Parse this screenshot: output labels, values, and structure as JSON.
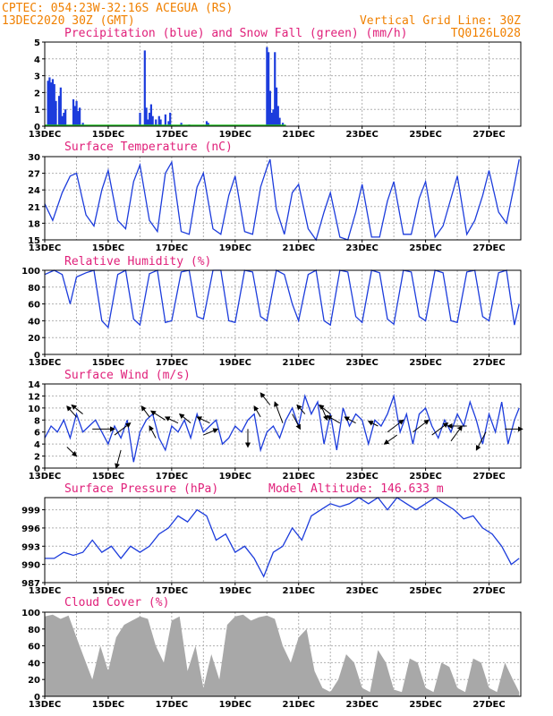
{
  "header": {
    "station": "CPTEC:  054:23W-32:16S  ACEGUA (RS)",
    "datetime": "13DEC2020 30Z (GMT)",
    "grid_note": "Vertical Grid Line: 30Z",
    "code": "TQ0126L028"
  },
  "colors": {
    "line": "#1c3cdc",
    "precip": "#1c3cdc",
    "snow": "#20c020",
    "cloud": "#a8a8a8",
    "title": "#e0207a",
    "header": "#f08000",
    "arrow": "#000000"
  },
  "x_ticks": [
    "13DEC",
    "15DEC",
    "17DEC",
    "19DEC",
    "21DEC",
    "23DEC",
    "25DEC",
    "27DEC"
  ],
  "x_start_label": "13DEC",
  "days_shown": 15,
  "panels": {
    "precip": {
      "title": "Precipitation (blue) and Snow Fall (green) (mm/h)",
      "ylim": [
        0,
        5
      ],
      "yticks": [
        "0",
        "1",
        "2",
        "3",
        "4",
        "5"
      ]
    },
    "temp": {
      "title": "Surface Temperature (nC)",
      "ylim": [
        15,
        30
      ],
      "yticks": [
        "15",
        "18",
        "21",
        "24",
        "27",
        "30"
      ]
    },
    "rh": {
      "title": "Relative Humidity (%)",
      "ylim": [
        0,
        100
      ],
      "yticks": [
        "0",
        "20",
        "40",
        "60",
        "80",
        "100"
      ]
    },
    "wind": {
      "title": "Surface Wind (m/s)",
      "ylim": [
        0,
        14
      ],
      "yticks": [
        "0",
        "2",
        "4",
        "6",
        "8",
        "10",
        "12",
        "14"
      ]
    },
    "pressure": {
      "title": "Surface Pressure (hPa)",
      "altitude": "Model Altitude: 146.633 m",
      "ylim": [
        987,
        1001
      ],
      "yticks": [
        "987",
        "990",
        "993",
        "996",
        "999"
      ]
    },
    "cloud": {
      "title": "Cloud Cover (%)",
      "ylim": [
        0,
        100
      ],
      "yticks": [
        "0",
        "20",
        "40",
        "60",
        "80",
        "100"
      ]
    }
  },
  "chart_data": [
    {
      "type": "bar",
      "name_ref": "precip",
      "x": [
        0.1,
        0.15,
        0.2,
        0.25,
        0.3,
        0.35,
        0.45,
        0.5,
        0.55,
        0.6,
        0.65,
        0.9,
        0.95,
        1.0,
        1.05,
        1.1,
        1.2,
        3.0,
        3.15,
        3.2,
        3.25,
        3.3,
        3.35,
        3.4,
        3.5,
        3.6,
        3.65,
        3.8,
        3.9,
        3.95,
        4.3,
        4.55,
        5.1,
        5.15,
        7.0,
        7.05,
        7.1,
        7.15,
        7.2,
        7.25,
        7.3,
        7.35,
        7.4,
        7.5
      ],
      "values": [
        2.7,
        2.9,
        2.6,
        2.8,
        2.5,
        1.5,
        1.8,
        2.3,
        0.6,
        0.8,
        1.0,
        1.6,
        1.2,
        1.5,
        0.9,
        1.1,
        0.2,
        0.8,
        4.5,
        1.1,
        0.4,
        0.8,
        1.3,
        0.6,
        0.4,
        0.6,
        0.4,
        0.7,
        0.3,
        0.8,
        0.2,
        0.1,
        0.3,
        0.2,
        4.7,
        4.4,
        2.1,
        0.8,
        1.0,
        4.4,
        2.3,
        1.2,
        0.5,
        0.2
      ]
    },
    {
      "type": "line",
      "name_ref": "temp",
      "x": [
        0,
        0.25,
        0.55,
        0.8,
        1.0,
        1.3,
        1.55,
        1.8,
        2.0,
        2.3,
        2.55,
        2.8,
        3.0,
        3.3,
        3.55,
        3.8,
        4.0,
        4.3,
        4.55,
        4.8,
        5.0,
        5.3,
        5.55,
        5.8,
        6.0,
        6.3,
        6.55,
        6.8,
        7.0,
        7.1,
        7.3,
        7.55,
        7.8,
        8.0,
        8.3,
        8.55,
        8.8,
        9.0,
        9.3,
        9.55,
        9.8,
        10.0,
        10.3,
        10.55,
        10.8,
        11.0,
        11.3,
        11.55,
        11.8,
        12.0,
        12.3,
        12.55,
        12.8,
        13.0,
        13.3,
        13.55,
        13.8,
        14.0,
        14.3,
        14.55,
        14.8,
        14.95
      ],
      "values": [
        21.5,
        18.5,
        23.5,
        26.5,
        27,
        19.5,
        17.5,
        24,
        27.5,
        18.5,
        17,
        25.5,
        28.5,
        18.5,
        16.5,
        27,
        29,
        16.5,
        16,
        24.5,
        27,
        17,
        16,
        23,
        26.5,
        16.5,
        16,
        24.5,
        28,
        29.5,
        20.5,
        16,
        23.5,
        25,
        17,
        15,
        20,
        23.5,
        15.5,
        15,
        20,
        25,
        15.5,
        15.5,
        22,
        25.5,
        16,
        16,
        22.5,
        25.5,
        15.5,
        17.5,
        22.5,
        26.5,
        16,
        18.5,
        23,
        27.5,
        20,
        18,
        25,
        29.5
      ]
    },
    {
      "type": "line",
      "name_ref": "rh",
      "x": [
        0,
        0.3,
        0.55,
        0.8,
        1.0,
        1.3,
        1.55,
        1.8,
        2.0,
        2.3,
        2.55,
        2.8,
        3.0,
        3.3,
        3.55,
        3.8,
        4.0,
        4.3,
        4.55,
        4.8,
        5.0,
        5.3,
        5.55,
        5.8,
        6.0,
        6.3,
        6.55,
        6.8,
        7.0,
        7.3,
        7.55,
        7.8,
        8.0,
        8.3,
        8.55,
        8.8,
        9.0,
        9.3,
        9.55,
        9.8,
        10.0,
        10.3,
        10.55,
        10.8,
        11.0,
        11.3,
        11.55,
        11.8,
        12.0,
        12.3,
        12.55,
        12.8,
        13.0,
        13.3,
        13.55,
        13.8,
        14.0,
        14.3,
        14.55,
        14.8,
        14.95
      ],
      "values": [
        95,
        100,
        95,
        60,
        92,
        97,
        100,
        40,
        32,
        95,
        100,
        42,
        35,
        96,
        100,
        38,
        40,
        98,
        100,
        45,
        42,
        100,
        100,
        40,
        38,
        100,
        98,
        45,
        40,
        100,
        95,
        60,
        40,
        95,
        100,
        40,
        35,
        100,
        98,
        45,
        38,
        100,
        97,
        42,
        36,
        100,
        98,
        45,
        40,
        100,
        97,
        40,
        38,
        98,
        100,
        45,
        40,
        97,
        100,
        35,
        60
      ]
    },
    {
      "type": "line",
      "name_ref": "wind",
      "x": [
        0,
        0.2,
        0.4,
        0.6,
        0.8,
        1.0,
        1.2,
        1.4,
        1.6,
        1.8,
        2.0,
        2.2,
        2.4,
        2.6,
        2.8,
        3.0,
        3.2,
        3.4,
        3.6,
        3.8,
        4.0,
        4.2,
        4.4,
        4.6,
        4.8,
        5.0,
        5.2,
        5.4,
        5.6,
        5.8,
        6.0,
        6.2,
        6.4,
        6.6,
        6.8,
        7.0,
        7.2,
        7.4,
        7.6,
        7.8,
        8.0,
        8.2,
        8.4,
        8.6,
        8.8,
        9.0,
        9.2,
        9.4,
        9.6,
        9.8,
        10.0,
        10.2,
        10.4,
        10.6,
        10.8,
        11.0,
        11.2,
        11.4,
        11.6,
        11.8,
        12.0,
        12.2,
        12.4,
        12.6,
        12.8,
        13.0,
        13.2,
        13.4,
        13.6,
        13.8,
        14.0,
        14.2,
        14.4,
        14.6,
        14.8,
        14.95
      ],
      "values": [
        5,
        7,
        6,
        8,
        5,
        9,
        6,
        7,
        8,
        6,
        4,
        7,
        5,
        8,
        1,
        6,
        8,
        9,
        5,
        3,
        7,
        6,
        8,
        5,
        9,
        6,
        7,
        8,
        4,
        5,
        7,
        6,
        8,
        9,
        3,
        6,
        7,
        5,
        8,
        10,
        7,
        12,
        9,
        11,
        4,
        9,
        3,
        10,
        7,
        9,
        8,
        4,
        8,
        7,
        9,
        12,
        6,
        9,
        4,
        9,
        10,
        7,
        5,
        8,
        6,
        9,
        7,
        11,
        8,
        4,
        9,
        6,
        11,
        4,
        8,
        10
      ]
    },
    {
      "type": "line",
      "name_ref": "pressure",
      "x": [
        0,
        0.3,
        0.6,
        0.9,
        1.2,
        1.5,
        1.8,
        2.1,
        2.4,
        2.7,
        3.0,
        3.3,
        3.6,
        3.9,
        4.2,
        4.5,
        4.8,
        5.1,
        5.4,
        5.7,
        6.0,
        6.3,
        6.6,
        6.9,
        7.2,
        7.5,
        7.8,
        8.1,
        8.4,
        8.7,
        9.0,
        9.3,
        9.6,
        9.9,
        10.2,
        10.5,
        10.8,
        11.1,
        11.4,
        11.7,
        12.0,
        12.3,
        12.6,
        12.9,
        13.2,
        13.5,
        13.8,
        14.1,
        14.4,
        14.7,
        14.95
      ],
      "values": [
        991,
        991,
        992,
        991.5,
        992,
        994,
        992,
        993,
        991,
        993,
        992,
        993,
        995,
        996,
        998,
        997,
        999,
        998,
        994,
        995,
        992,
        993,
        991,
        988,
        992,
        993,
        996,
        994,
        998,
        999,
        1000,
        999.5,
        1000,
        1001,
        1000,
        1001,
        999,
        1001,
        1000,
        999,
        1000,
        1001,
        1000,
        999,
        997.5,
        998,
        996,
        995,
        993,
        990,
        991
      ]
    },
    {
      "type": "area",
      "name_ref": "cloud",
      "x": [
        0,
        0.25,
        0.5,
        0.75,
        1.0,
        1.25,
        1.5,
        1.75,
        2.0,
        2.25,
        2.5,
        2.75,
        3.0,
        3.25,
        3.5,
        3.75,
        4.0,
        4.25,
        4.5,
        4.75,
        5.0,
        5.25,
        5.5,
        5.75,
        6.0,
        6.25,
        6.5,
        6.75,
        7.0,
        7.25,
        7.5,
        7.75,
        8.0,
        8.25,
        8.5,
        8.75,
        9.0,
        9.25,
        9.5,
        9.75,
        10.0,
        10.25,
        10.5,
        10.75,
        11.0,
        11.25,
        11.5,
        11.75,
        12.0,
        12.25,
        12.5,
        12.75,
        13.0,
        13.25,
        13.5,
        13.75,
        14.0,
        14.25,
        14.5,
        14.75,
        14.95
      ],
      "values": [
        95,
        97,
        92,
        96,
        70,
        45,
        20,
        60,
        30,
        70,
        85,
        90,
        95,
        92,
        60,
        40,
        90,
        95,
        30,
        60,
        10,
        50,
        20,
        85,
        95,
        97,
        90,
        94,
        96,
        92,
        60,
        40,
        70,
        80,
        30,
        10,
        5,
        20,
        50,
        40,
        10,
        5,
        55,
        40,
        8,
        5,
        45,
        40,
        10,
        5,
        40,
        35,
        10,
        5,
        45,
        40,
        10,
        5,
        40,
        20,
        5
      ]
    }
  ],
  "wind_vectors": [
    {
      "x": 0.7,
      "y": 3.5,
      "u": 0.3,
      "v": -0.15
    },
    {
      "x": 1.0,
      "y": 8.5,
      "u": -0.3,
      "v": 0.18
    },
    {
      "x": 1.2,
      "y": 9.0,
      "u": -0.35,
      "v": 0.15
    },
    {
      "x": 1.5,
      "y": 6.5,
      "u": 0.7,
      "v": 0.0
    },
    {
      "x": 2.2,
      "y": 5.5,
      "u": 0.5,
      "v": 0.2
    },
    {
      "x": 2.4,
      "y": 3.0,
      "u": -0.15,
      "v": -0.3
    },
    {
      "x": 3.3,
      "y": 8.5,
      "u": -0.25,
      "v": 0.18
    },
    {
      "x": 3.5,
      "y": 5.0,
      "u": -0.2,
      "v": 0.2
    },
    {
      "x": 3.8,
      "y": 8.0,
      "u": -0.45,
      "v": 0.15
    },
    {
      "x": 4.2,
      "y": 7.5,
      "u": -0.4,
      "v": 0.1
    },
    {
      "x": 4.6,
      "y": 7.5,
      "u": -0.35,
      "v": 0.15
    },
    {
      "x": 5.0,
      "y": 5.5,
      "u": 0.45,
      "v": 0.1
    },
    {
      "x": 5.2,
      "y": 7.5,
      "u": -0.4,
      "v": 0.1
    },
    {
      "x": 6.4,
      "y": 6.5,
      "u": 0.0,
      "v": -0.3
    },
    {
      "x": 6.8,
      "y": 8.5,
      "u": -0.2,
      "v": 0.18
    },
    {
      "x": 7.1,
      "y": 10.5,
      "u": -0.3,
      "v": 0.2
    },
    {
      "x": 7.5,
      "y": 7.5,
      "u": -0.25,
      "v": 0.35
    },
    {
      "x": 7.8,
      "y": 9.0,
      "u": 0.25,
      "v": -0.25
    },
    {
      "x": 8.2,
      "y": 9.0,
      "u": -0.25,
      "v": 0.15
    },
    {
      "x": 8.7,
      "y": 10.5,
      "u": 0.2,
      "v": -0.25
    },
    {
      "x": 9.0,
      "y": 9.0,
      "u": -0.35,
      "v": 0.15
    },
    {
      "x": 9.3,
      "y": 7.5,
      "u": -0.4,
      "v": 0.12
    },
    {
      "x": 9.8,
      "y": 7.5,
      "u": -0.35,
      "v": 0.1
    },
    {
      "x": 10.5,
      "y": 7.0,
      "u": -0.3,
      "v": 0.08
    },
    {
      "x": 10.8,
      "y": 6.0,
      "u": 0.5,
      "v": 0.2
    },
    {
      "x": 11.1,
      "y": 5.5,
      "u": -0.4,
      "v": -0.15
    },
    {
      "x": 11.6,
      "y": 6.0,
      "u": 0.5,
      "v": 0.2
    },
    {
      "x": 12.2,
      "y": 5.5,
      "u": 0.5,
      "v": 0.2
    },
    {
      "x": 12.8,
      "y": 4.5,
      "u": 0.35,
      "v": 0.25
    },
    {
      "x": 13.3,
      "y": 7.0,
      "u": -0.6,
      "v": 0.0
    },
    {
      "x": 13.9,
      "y": 6.0,
      "u": -0.3,
      "v": -0.3
    },
    {
      "x": 14.5,
      "y": 6.5,
      "u": 0.55,
      "v": 0.0
    }
  ]
}
